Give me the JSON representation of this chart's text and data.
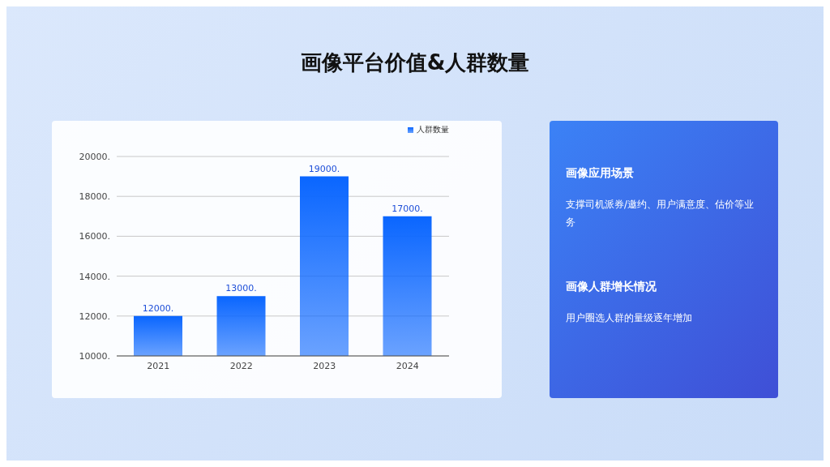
{
  "chart_data": {
    "type": "bar",
    "title": "画像平台价值&人群数量",
    "categories": [
      "2021",
      "2022",
      "2023",
      "2024"
    ],
    "series": [
      {
        "name": "人群数量",
        "color": "#0a66ff",
        "values": [
          12000,
          13000,
          19000,
          17000
        ],
        "value_labels": [
          "12000.",
          "13000.",
          "19000.",
          "17000."
        ]
      }
    ],
    "ylim": [
      10000,
      20000
    ],
    "yticks": [
      {
        "value": 10000,
        "label": "10000."
      },
      {
        "value": 12000,
        "label": "12000."
      },
      {
        "value": 14000,
        "label": "14000."
      },
      {
        "value": 16000,
        "label": "16000."
      },
      {
        "value": 18000,
        "label": "18000."
      },
      {
        "value": 20000,
        "label": "20000."
      }
    ],
    "grid": "y",
    "legend": "top right",
    "annotations": [
      "画像应用场景",
      "支撑司机派券/邀约、用户满意度、估价等业务",
      "画像人群增长情况",
      "用户圈选人群的量级逐年增加"
    ]
  }
}
